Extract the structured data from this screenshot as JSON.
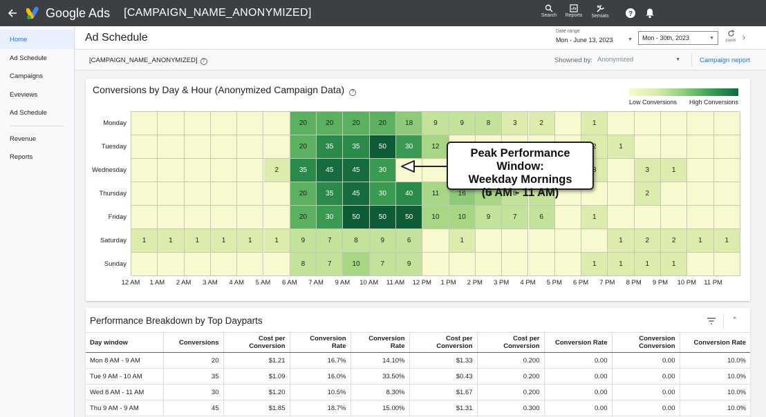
{
  "topbar": {
    "app_name": "Google Ads",
    "campaign_title": "[CAMPAIGN_NAME_ANONYMIZED]",
    "tools": [
      {
        "label": "Search",
        "icon": "search-icon"
      },
      {
        "label": "Reports",
        "icon": "reports-icon"
      },
      {
        "label": "Semiats",
        "icon": "tools-icon"
      }
    ]
  },
  "sidebar": {
    "items": [
      "Home",
      "Ad Schedule",
      "Campaigns",
      "Eveviews",
      "Ad Schedule"
    ],
    "items2": [
      "Revenue",
      "Reports"
    ]
  },
  "header": {
    "title": "Ad Schedule",
    "date_range_label": "Date range",
    "date_range_value": "Mon - June 13, 2023",
    "date_select": "Mon - 30th, 2023",
    "zoom_label": "zoom"
  },
  "subheader": {
    "campaign": "[CAMPAIGN_NAME_ANONYMIZED]",
    "showned_label": "Showned by:",
    "showned_value": "Anonymized",
    "report_link": "Campaign neport"
  },
  "heatmap": {
    "title": "Conversions by Day & Hour (Anonymized Campaign Data)",
    "legend_low": "Low Conversions",
    "legend_high": "High Conversions",
    "days": [
      "Monday",
      "Tuesday",
      "Wednesday",
      "Thursday",
      "Friday",
      "Saturday",
      "Sunday"
    ],
    "hours": [
      "12 AM",
      "1 AM",
      "2 AM",
      "3 AM",
      "4 AM",
      "5 AM",
      "6 AM",
      "7 AM",
      "9 AM",
      "10 AM",
      "11 AM",
      "12 PM",
      "1 PM",
      "2 PM",
      "3 PM",
      "4 PM",
      "5 PM",
      "6 PM",
      "7 PM",
      "8 PM",
      "9 PM",
      "10 PM",
      "11 PM"
    ],
    "values": [
      [
        null,
        null,
        null,
        null,
        null,
        null,
        20,
        20,
        20,
        20,
        18,
        9,
        9,
        8,
        3,
        2,
        null,
        1,
        null,
        null,
        null,
        null,
        null
      ],
      [
        null,
        null,
        null,
        null,
        null,
        null,
        20,
        35,
        35,
        50,
        30,
        12,
        null,
        null,
        null,
        null,
        null,
        2,
        1,
        null,
        null,
        null,
        null
      ],
      [
        null,
        null,
        null,
        null,
        null,
        2,
        35,
        45,
        45,
        30,
        null,
        null,
        null,
        null,
        null,
        null,
        null,
        3,
        null,
        3,
        1,
        null,
        null
      ],
      [
        null,
        null,
        null,
        null,
        null,
        null,
        20,
        35,
        45,
        30,
        40,
        11,
        16,
        14,
        8,
        7,
        null,
        null,
        null,
        2,
        null,
        null,
        null
      ],
      [
        null,
        null,
        null,
        null,
        null,
        null,
        20,
        30,
        50,
        50,
        50,
        10,
        10,
        9,
        7,
        6,
        null,
        1,
        null,
        null,
        null,
        null,
        null
      ],
      [
        1,
        1,
        1,
        1,
        1,
        1,
        9,
        7,
        8,
        9,
        6,
        null,
        1,
        null,
        null,
        null,
        null,
        null,
        1,
        2,
        2,
        1,
        1
      ],
      [
        null,
        null,
        null,
        null,
        null,
        null,
        8,
        7,
        10,
        7,
        9,
        null,
        null,
        null,
        null,
        null,
        null,
        1,
        1,
        1,
        1,
        null,
        null
      ]
    ],
    "callout": [
      "Peak Performance Window:",
      "Weekday Mornings",
      "(6 AM - 11 AM)"
    ]
  },
  "table": {
    "title": "Performance Breakdown by Top Dayparts",
    "headers": [
      "Day window",
      "Conversions",
      "Cost per Conversion",
      "Conversion Rate",
      "Conversion Rate",
      "Cost per Conversion",
      "Cost per Conversion",
      "Conversion Rate",
      "Conversion Conversion",
      "Conversion Rate"
    ],
    "rows": [
      [
        "Mon 8 AM - 9 AM",
        "20",
        "$1.21",
        "16.7%",
        "14.10%",
        "$1.33",
        "0.200",
        "0.00",
        "0.00",
        "10.0%"
      ],
      [
        "Tue 9 AM - 10 AM",
        "35",
        "$1.09",
        "16.0%",
        "33.50%",
        "$0.43",
        "0.200",
        "0.00",
        "0.00",
        "10.0%"
      ],
      [
        "Wed 8 AM - 11 AM",
        "30",
        "$1.20",
        "10.5%",
        "8.30%",
        "$1.67",
        "0.200",
        "0.00",
        "0.00",
        "10.0%"
      ],
      [
        "Thu 9 AM - 9 AM",
        "45",
        "$1.85",
        "18.7%",
        "15.00%",
        "$1.31",
        "0.300",
        "0.00",
        "0.00",
        "10.0%"
      ]
    ]
  }
}
